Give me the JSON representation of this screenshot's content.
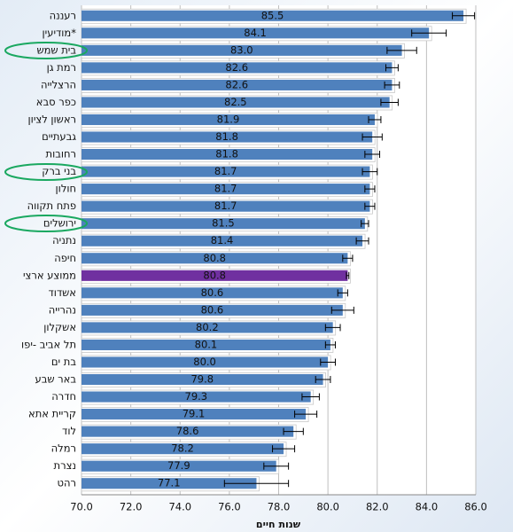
{
  "chart_data": {
    "type": "bar",
    "orientation": "horizontal",
    "categories": [
      "רעננה",
      "מודיעין*",
      "בית שמש",
      "רמת גן",
      "הרצלייה",
      "כפר סבא",
      "ראשון לציון",
      "גבעתיים",
      "רחובות",
      "בני ברק",
      "חולון",
      "פתח תקווה",
      "ירושלים",
      "נתניה",
      "חיפה",
      "ממוצע ארצי",
      "אשדוד",
      "נהרייה",
      "אשקלון",
      "תל אביב -יפו",
      "בת ים",
      "באר שבע",
      "חדרה",
      "קריית אתא",
      "לוד",
      "רמלה",
      "נצרת",
      "רהט"
    ],
    "values": [
      85.5,
      84.1,
      83.0,
      82.6,
      82.6,
      82.5,
      81.9,
      81.8,
      81.8,
      81.7,
      81.7,
      81.7,
      81.5,
      81.4,
      80.8,
      80.8,
      80.6,
      80.6,
      80.2,
      80.1,
      80.0,
      79.8,
      79.3,
      79.1,
      78.6,
      78.2,
      77.9,
      77.1
    ],
    "value_labels": [
      "85.5",
      "84.1",
      "83.0",
      "82.6",
      "82.6",
      "82.5",
      "81.9",
      "81.8",
      "81.8",
      "81.7",
      "81.7",
      "81.7",
      "81.5",
      "81.4",
      "80.8",
      "80.8",
      "80.6",
      "80.6",
      "80.2",
      "80.1",
      "80.0",
      "79.8",
      "79.3",
      "79.1",
      "78.6",
      "78.2",
      "77.9",
      "77.1"
    ],
    "errors": [
      0.45,
      0.7,
      0.6,
      0.25,
      0.3,
      0.35,
      0.25,
      0.4,
      0.3,
      0.3,
      0.2,
      0.2,
      0.15,
      0.25,
      0.2,
      0.05,
      0.2,
      0.45,
      0.3,
      0.2,
      0.3,
      0.3,
      0.35,
      0.45,
      0.4,
      0.45,
      0.5,
      1.3
    ],
    "colors": [
      "#4f81bd",
      "#4f81bd",
      "#4f81bd",
      "#4f81bd",
      "#4f81bd",
      "#4f81bd",
      "#4f81bd",
      "#4f81bd",
      "#4f81bd",
      "#4f81bd",
      "#4f81bd",
      "#4f81bd",
      "#4f81bd",
      "#4f81bd",
      "#4f81bd",
      "#7030a0",
      "#4f81bd",
      "#4f81bd",
      "#4f81bd",
      "#4f81bd",
      "#4f81bd",
      "#4f81bd",
      "#4f81bd",
      "#4f81bd",
      "#4f81bd",
      "#4f81bd",
      "#4f81bd",
      "#4f81bd"
    ],
    "x_label": "שנות חיים",
    "xlim": [
      70,
      86
    ],
    "xticks": [
      {
        "value": 70,
        "label": "70.0"
      },
      {
        "value": 72,
        "label": "72.0"
      },
      {
        "value": 74,
        "label": "74.0"
      },
      {
        "value": 76,
        "label": "76.0"
      },
      {
        "value": 78,
        "label": "78.0"
      },
      {
        "value": 80,
        "label": "80.0"
      },
      {
        "value": 82,
        "label": "82.0"
      },
      {
        "value": 84,
        "label": "84.0"
      },
      {
        "value": 86,
        "label": "86.0"
      }
    ],
    "grid": true
  }
}
